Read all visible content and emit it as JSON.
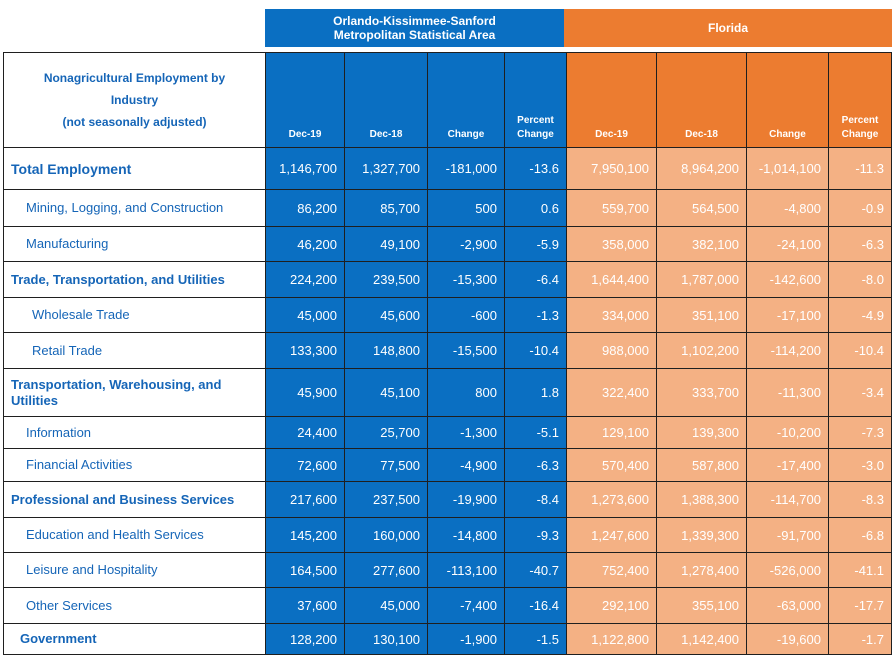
{
  "groups": {
    "orlando": "Orlando-Kissimmee-Sanford Metropolitan Statistical Area",
    "florida": "Florida"
  },
  "table_title": [
    "Nonagricultural Employment by",
    "Industry",
    "(not seasonally adjusted)"
  ],
  "columns": [
    "Dec-19",
    "Dec-18",
    "Change",
    "Percent Change",
    "Dec-19",
    "Dec-18",
    "Change",
    "Percent Change"
  ],
  "colors": {
    "orlando": "#0a6fc2",
    "florida_header": "#ec7c30",
    "florida_cells": "#f4b184",
    "industry_text": "#1565b7"
  },
  "rows": [
    {
      "industry": "Total Employment",
      "values": [
        "1,146,700",
        "1,327,700",
        "-181,000",
        "-13.6",
        "7,950,100",
        "8,964,200",
        "-1,014,100",
        "-11.3"
      ]
    },
    {
      "industry": "Mining, Logging, and Construction",
      "values": [
        "86,200",
        "85,700",
        "500",
        "0.6",
        "559,700",
        "564,500",
        "-4,800",
        "-0.9"
      ]
    },
    {
      "industry": "Manufacturing",
      "values": [
        "46,200",
        "49,100",
        "-2,900",
        "-5.9",
        "358,000",
        "382,100",
        "-24,100",
        "-6.3"
      ]
    },
    {
      "industry": "Trade, Transportation, and Utilities",
      "values": [
        "224,200",
        "239,500",
        "-15,300",
        "-6.4",
        "1,644,400",
        "1,787,000",
        "-142,600",
        "-8.0"
      ]
    },
    {
      "industry": "Wholesale Trade",
      "values": [
        "45,000",
        "45,600",
        "-600",
        "-1.3",
        "334,000",
        "351,100",
        "-17,100",
        "-4.9"
      ]
    },
    {
      "industry": "Retail Trade",
      "values": [
        "133,300",
        "148,800",
        "-15,500",
        "-10.4",
        "988,000",
        "1,102,200",
        "-114,200",
        "-10.4"
      ]
    },
    {
      "industry": "Transportation, Warehousing, and Utilities",
      "values": [
        "45,900",
        "45,100",
        "800",
        "1.8",
        "322,400",
        "333,700",
        "-11,300",
        "-3.4"
      ]
    },
    {
      "industry": "Information",
      "values": [
        "24,400",
        "25,700",
        "-1,300",
        "-5.1",
        "129,100",
        "139,300",
        "-10,200",
        "-7.3"
      ]
    },
    {
      "industry": "Financial Activities",
      "values": [
        "72,600",
        "77,500",
        "-4,900",
        "-6.3",
        "570,400",
        "587,800",
        "-17,400",
        "-3.0"
      ]
    },
    {
      "industry": "Professional and Business Services",
      "values": [
        "217,600",
        "237,500",
        "-19,900",
        "-8.4",
        "1,273,600",
        "1,388,300",
        "-114,700",
        "-8.3"
      ]
    },
    {
      "industry": "Education and Health Services",
      "values": [
        "145,200",
        "160,000",
        "-14,800",
        "-9.3",
        "1,247,600",
        "1,339,300",
        "-91,700",
        "-6.8"
      ]
    },
    {
      "industry": "Leisure and Hospitality",
      "values": [
        "164,500",
        "277,600",
        "-113,100",
        "-40.7",
        "752,400",
        "1,278,400",
        "-526,000",
        "-41.1"
      ]
    },
    {
      "industry": "Other Services",
      "values": [
        "37,600",
        "45,000",
        "-7,400",
        "-16.4",
        "292,100",
        "355,100",
        "-63,000",
        "-17.7"
      ]
    },
    {
      "industry": "Government",
      "values": [
        "128,200",
        "130,100",
        "-1,900",
        "-1.5",
        "1,122,800",
        "1,142,400",
        "-19,600",
        "-1.7"
      ]
    }
  ]
}
